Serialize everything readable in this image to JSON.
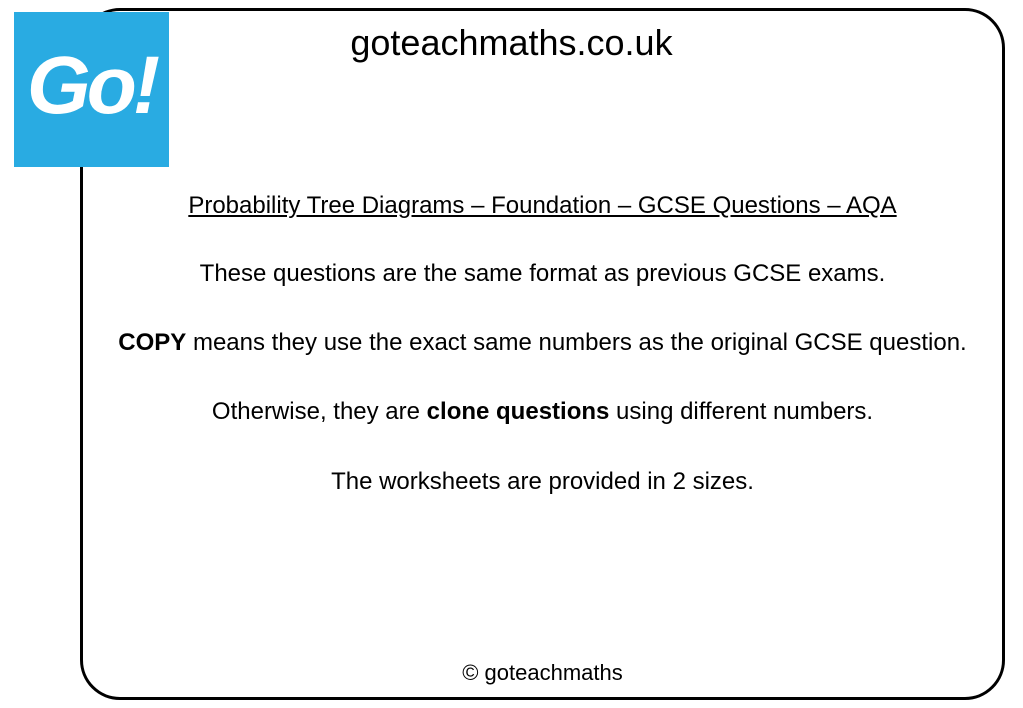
{
  "logo": {
    "text": "Go!",
    "background_color": "#29abe2",
    "text_color": "#ffffff"
  },
  "site_title": "goteachmaths.co.uk",
  "heading": "Probability Tree Diagrams – Foundation – GCSE Questions – AQA",
  "lines": {
    "line1": "These questions are the same format as previous GCSE exams.",
    "line2_bold": "COPY",
    "line2_rest": " means they use the exact same numbers as the original GCSE question.",
    "line3_pre": "Otherwise, they are ",
    "line3_bold": "clone questions",
    "line3_post": " using different numbers.",
    "line4": "The worksheets are provided in 2 sizes."
  },
  "footer": "© goteachmaths",
  "styling": {
    "frame_border_color": "#000000",
    "frame_border_width": 3,
    "frame_border_radius": 40,
    "background_color": "#ffffff",
    "title_fontsize": 36,
    "heading_fontsize": 24,
    "body_fontsize": 24,
    "footer_fontsize": 22,
    "text_color": "#000000"
  }
}
